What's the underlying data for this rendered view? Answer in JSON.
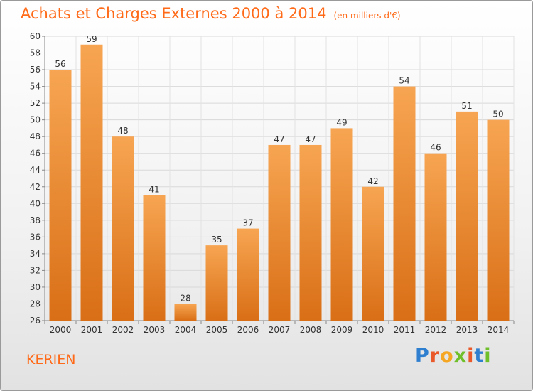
{
  "chart_data": {
    "type": "bar",
    "title": "Achats et Charges Externes 2000 à 2014",
    "subtitle": "(en milliers d'€)",
    "categories": [
      "2000",
      "2001",
      "2002",
      "2003",
      "2004",
      "2005",
      "2006",
      "2007",
      "2008",
      "2009",
      "2010",
      "2011",
      "2012",
      "2013",
      "2014"
    ],
    "values": [
      56,
      59,
      48,
      41,
      28,
      35,
      37,
      47,
      47,
      49,
      42,
      54,
      46,
      51,
      50
    ],
    "ylim": [
      26,
      60
    ],
    "ytick_step": 2,
    "grid": true,
    "bar_color_top": "#f7a552",
    "bar_color_bottom": "#d96f16"
  },
  "city": "KERIEN",
  "logo": {
    "letters": [
      "P",
      "r",
      "o",
      "x",
      "i",
      "t",
      "i"
    ],
    "colors": [
      "#2f7fd0",
      "#e9592a",
      "#f5a623",
      "#6fbf2b",
      "#e9592a",
      "#2f7fd0",
      "#6fbf2b"
    ]
  }
}
